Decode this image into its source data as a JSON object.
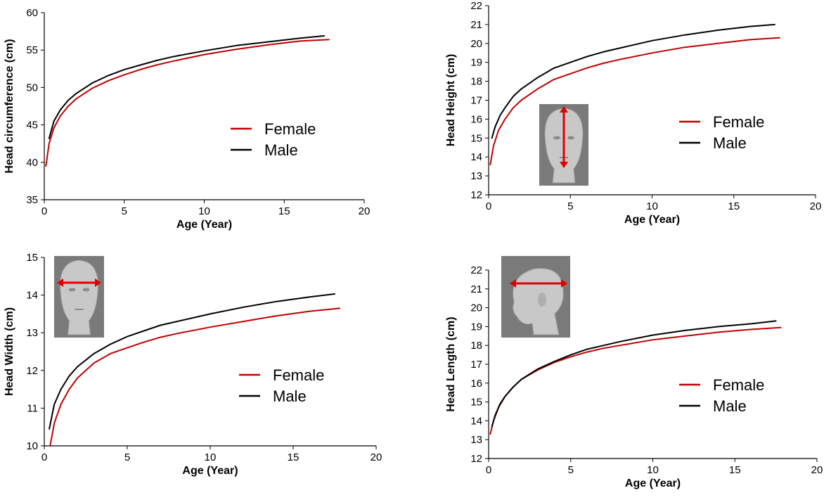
{
  "colors": {
    "female": "#c00000",
    "male": "#000000",
    "photo_bg": "#7a7a7a",
    "arrow": "#e00000"
  },
  "chart_data": [
    {
      "id": "head-circumference",
      "type": "line",
      "xlabel": "Age (Year)",
      "ylabel": "Head circumference (cm)",
      "xlim": [
        0,
        20
      ],
      "ylim": [
        35,
        60
      ],
      "xticks": [
        0,
        5,
        10,
        15,
        20
      ],
      "yticks": [
        35,
        40,
        45,
        50,
        55,
        60
      ],
      "legend_position": "center-right",
      "photo": "none",
      "series": [
        {
          "name": "Female",
          "color": "#c00000",
          "x": [
            0.1,
            0.3,
            0.6,
            1,
            1.5,
            2,
            3,
            4,
            5,
            6,
            7,
            8,
            10,
            12,
            14,
            16,
            17.8
          ],
          "y": [
            39.5,
            42.5,
            44.6,
            46.2,
            47.5,
            48.5,
            49.9,
            50.9,
            51.7,
            52.4,
            53.0,
            53.5,
            54.4,
            55.1,
            55.7,
            56.2,
            56.4
          ]
        },
        {
          "name": "Male",
          "color": "#000000",
          "x": [
            0.3,
            0.6,
            1,
            1.5,
            2,
            3,
            4,
            5,
            6,
            7,
            8,
            10,
            12,
            14,
            16,
            17.5
          ],
          "y": [
            43.2,
            45.5,
            47.0,
            48.3,
            49.2,
            50.6,
            51.6,
            52.4,
            53.0,
            53.6,
            54.1,
            54.9,
            55.6,
            56.1,
            56.6,
            56.9
          ]
        }
      ]
    },
    {
      "id": "head-height",
      "type": "line",
      "xlabel": "Age (Year)",
      "ylabel": "Head Height (cm)",
      "xlim": [
        0,
        20
      ],
      "ylim": [
        12,
        22
      ],
      "xticks": [
        0,
        5,
        10,
        15,
        20
      ],
      "yticks": [
        12,
        13,
        14,
        15,
        16,
        17,
        18,
        19,
        20,
        21,
        22
      ],
      "legend_position": "center-right",
      "photo": "front-view-height",
      "series": [
        {
          "name": "Female",
          "color": "#c00000",
          "x": [
            0.1,
            0.3,
            0.6,
            1,
            1.5,
            2,
            3,
            4,
            5,
            6,
            7,
            8,
            10,
            12,
            14,
            16,
            17.8
          ],
          "y": [
            13.6,
            14.6,
            15.4,
            16.0,
            16.6,
            17.0,
            17.6,
            18.1,
            18.4,
            18.7,
            18.95,
            19.15,
            19.5,
            19.8,
            20.0,
            20.2,
            20.3
          ]
        },
        {
          "name": "Male",
          "color": "#000000",
          "x": [
            0.2,
            0.4,
            0.7,
            1,
            1.5,
            2,
            3,
            4,
            5,
            6,
            7,
            8,
            10,
            12,
            14,
            16,
            17.5
          ],
          "y": [
            15.0,
            15.6,
            16.2,
            16.6,
            17.2,
            17.6,
            18.2,
            18.7,
            19.0,
            19.3,
            19.55,
            19.75,
            20.15,
            20.45,
            20.7,
            20.9,
            21.0
          ]
        }
      ]
    },
    {
      "id": "head-width",
      "type": "line",
      "xlabel": "Age (Year)",
      "ylabel": "Head  Width (cm)",
      "xlim": [
        0,
        20
      ],
      "ylim": [
        10,
        15
      ],
      "xticks": [
        0,
        5,
        10,
        15,
        20
      ],
      "yticks": [
        10,
        11,
        12,
        13,
        14,
        15
      ],
      "legend_position": "center-right",
      "photo": "front-view-width",
      "series": [
        {
          "name": "Female",
          "color": "#c00000",
          "x": [
            0.35,
            0.6,
            1,
            1.5,
            2,
            3,
            4,
            5,
            6,
            7,
            8,
            10,
            12,
            14,
            16,
            17.8
          ],
          "y": [
            10.0,
            10.6,
            11.1,
            11.5,
            11.8,
            12.2,
            12.45,
            12.6,
            12.75,
            12.88,
            12.98,
            13.15,
            13.3,
            13.45,
            13.57,
            13.65
          ]
        },
        {
          "name": "Male",
          "color": "#000000",
          "x": [
            0.3,
            0.6,
            1,
            1.5,
            2,
            3,
            4,
            5,
            6,
            7,
            8,
            10,
            12,
            14,
            16,
            17.5
          ],
          "y": [
            10.45,
            11.1,
            11.5,
            11.85,
            12.1,
            12.45,
            12.7,
            12.9,
            13.05,
            13.2,
            13.3,
            13.5,
            13.68,
            13.83,
            13.95,
            14.03
          ]
        }
      ]
    },
    {
      "id": "head-length",
      "type": "line",
      "xlabel": "Age (Year)",
      "ylabel": "Head Length (cm)",
      "xlim": [
        0,
        20
      ],
      "ylim": [
        12,
        22
      ],
      "xticks": [
        0,
        5,
        10,
        15,
        20
      ],
      "yticks": [
        12,
        13,
        14,
        15,
        16,
        17,
        18,
        19,
        20,
        21,
        22
      ],
      "legend_position": "lower-right",
      "photo": "side-view-length",
      "series": [
        {
          "name": "Female",
          "color": "#c00000",
          "x": [
            0.1,
            0.3,
            0.6,
            1,
            1.5,
            2,
            3,
            4,
            5,
            6,
            7,
            8,
            10,
            12,
            14,
            16,
            17.8
          ],
          "y": [
            13.3,
            14.0,
            14.7,
            15.3,
            15.8,
            16.2,
            16.7,
            17.1,
            17.4,
            17.65,
            17.85,
            18.0,
            18.3,
            18.5,
            18.7,
            18.85,
            18.95
          ]
        },
        {
          "name": "Male",
          "color": "#000000",
          "x": [
            0.2,
            0.4,
            0.7,
            1,
            1.5,
            2,
            3,
            4,
            5,
            6,
            7,
            8,
            10,
            12,
            14,
            16,
            17.5
          ],
          "y": [
            13.7,
            14.3,
            14.9,
            15.3,
            15.8,
            16.2,
            16.75,
            17.15,
            17.5,
            17.8,
            18.0,
            18.2,
            18.55,
            18.8,
            19.0,
            19.15,
            19.3
          ]
        }
      ]
    }
  ]
}
